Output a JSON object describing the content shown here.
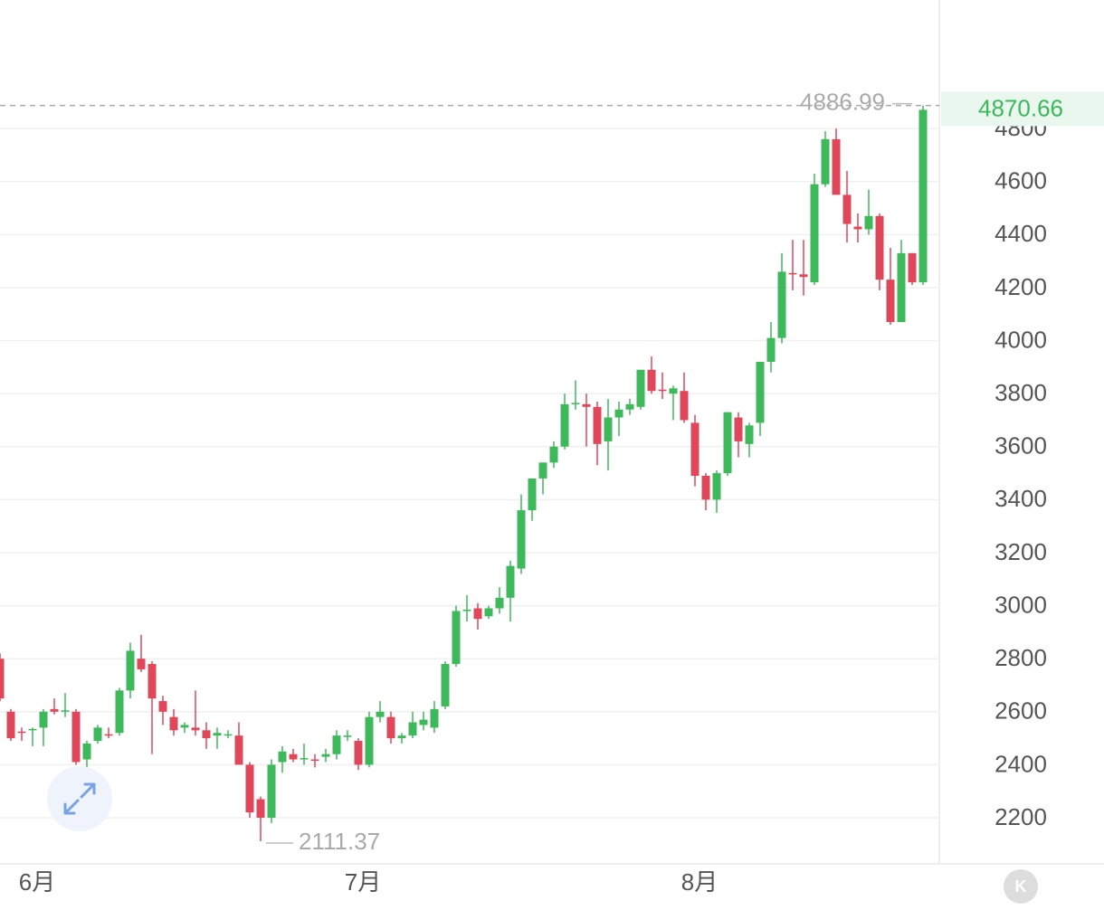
{
  "chart_data": {
    "type": "candlestick",
    "categories": [
      null,
      null,
      null,
      "6月",
      null,
      null,
      null,
      null,
      null,
      null,
      null,
      null,
      null,
      null,
      null,
      null,
      null,
      null,
      null,
      null,
      null,
      null,
      null,
      null,
      null,
      null,
      null,
      null,
      null,
      null,
      null,
      null,
      null,
      "7月",
      null,
      null,
      null,
      null,
      null,
      null,
      null,
      null,
      null,
      null,
      null,
      null,
      null,
      null,
      null,
      null,
      null,
      null,
      null,
      null,
      null,
      null,
      null,
      null,
      null,
      null,
      null,
      null,
      null,
      null,
      "8月",
      null,
      null,
      null,
      null,
      null,
      null,
      null,
      null,
      null,
      null,
      null,
      null,
      null,
      null,
      null,
      null,
      null,
      null,
      null,
      null,
      null
    ],
    "open": [
      2800,
      2600,
      2525,
      2530,
      2540,
      2610,
      2600,
      2600,
      2420,
      2490,
      2515,
      2520,
      2680,
      2800,
      2780,
      2640,
      2580,
      2540,
      2540,
      2530,
      2510,
      2510,
      2510,
      2400,
      2270,
      2200,
      2410,
      2440,
      2420,
      2420,
      2430,
      2440,
      2505,
      2490,
      2400,
      2580,
      2580,
      2500,
      2510,
      2550,
      2540,
      2620,
      2780,
      2980,
      2990,
      2960,
      2990,
      3030,
      3140,
      3360,
      3480,
      3540,
      3600,
      3760,
      3760,
      3750,
      3620,
      3710,
      3740,
      3750,
      3890,
      3815,
      3800,
      3810,
      3690,
      3490,
      3400,
      3500,
      3710,
      3610,
      3690,
      3920,
      4010,
      4255,
      4250,
      4220,
      4590,
      4760,
      4550,
      4430,
      4420,
      4470,
      4230,
      4070,
      4330,
      4220
    ],
    "high": [
      2820,
      2610,
      2540,
      2540,
      2610,
      2650,
      2670,
      2610,
      2490,
      2550,
      2540,
      2690,
      2860,
      2890,
      2790,
      2660,
      2610,
      2560,
      2680,
      2560,
      2540,
      2530,
      2560,
      2410,
      2280,
      2420,
      2470,
      2460,
      2480,
      2440,
      2460,
      2530,
      2530,
      2500,
      2600,
      2640,
      2600,
      2520,
      2600,
      2600,
      2640,
      2790,
      3000,
      3040,
      3010,
      3000,
      3070,
      3170,
      3420,
      3480,
      3540,
      3620,
      3800,
      3850,
      3800,
      3770,
      3780,
      3770,
      3780,
      3890,
      3940,
      3880,
      3830,
      3880,
      3720,
      3500,
      3510,
      3730,
      3730,
      3690,
      3920,
      4070,
      4330,
      4380,
      4380,
      4630,
      4790,
      4800,
      4640,
      4480,
      4570,
      4480,
      4350,
      4380,
      4330,
      4886.99
    ],
    "low": [
      2640,
      2490,
      2490,
      2470,
      2470,
      2590,
      2580,
      2400,
      2390,
      2480,
      2500,
      2510,
      2650,
      2750,
      2440,
      2550,
      2510,
      2520,
      2510,
      2460,
      2460,
      2500,
      2400,
      2200,
      2111.37,
      2180,
      2370,
      2410,
      2400,
      2390,
      2410,
      2420,
      2490,
      2380,
      2390,
      2560,
      2480,
      2480,
      2500,
      2530,
      2520,
      2610,
      2770,
      2940,
      2910,
      2950,
      2970,
      2940,
      3120,
      3320,
      3420,
      3520,
      3590,
      3740,
      3600,
      3530,
      3510,
      3640,
      3720,
      3740,
      3800,
      3780,
      3700,
      3690,
      3450,
      3360,
      3350,
      3490,
      3560,
      3560,
      3640,
      3880,
      3990,
      4190,
      4170,
      4210,
      4580,
      4550,
      4370,
      4370,
      4400,
      4190,
      4060,
      4070,
      4210,
      4210
    ],
    "close": [
      2650,
      2500,
      2520,
      2535,
      2600,
      2600,
      2605,
      2410,
      2480,
      2540,
      2510,
      2680,
      2830,
      2760,
      2650,
      2600,
      2530,
      2550,
      2530,
      2500,
      2520,
      2515,
      2400,
      2220,
      2200,
      2400,
      2450,
      2420,
      2425,
      2415,
      2440,
      2510,
      2510,
      2400,
      2580,
      2600,
      2500,
      2510,
      2560,
      2570,
      2610,
      2780,
      2980,
      2985,
      2950,
      2990,
      3030,
      3150,
      3360,
      3480,
      3540,
      3600,
      3760,
      3765,
      3750,
      3610,
      3710,
      3740,
      3760,
      3890,
      3810,
      3810,
      3820,
      3700,
      3490,
      3400,
      3500,
      3730,
      3620,
      3680,
      3920,
      4010,
      4260,
      4250,
      4240,
      4590,
      4760,
      4550,
      4440,
      4420,
      4470,
      4230,
      4070,
      4330,
      4220,
      4870.66
    ],
    "up_color": "#3db85a",
    "down_color": "#e0475a",
    "ylim": [
      2026,
      5285
    ],
    "yticks": [
      2200,
      2400,
      2600,
      2800,
      3000,
      3200,
      3400,
      3600,
      3800,
      4000,
      4200,
      4400,
      4600,
      4800
    ],
    "grid": true
  },
  "ui": {
    "button_label": "K"
  }
}
